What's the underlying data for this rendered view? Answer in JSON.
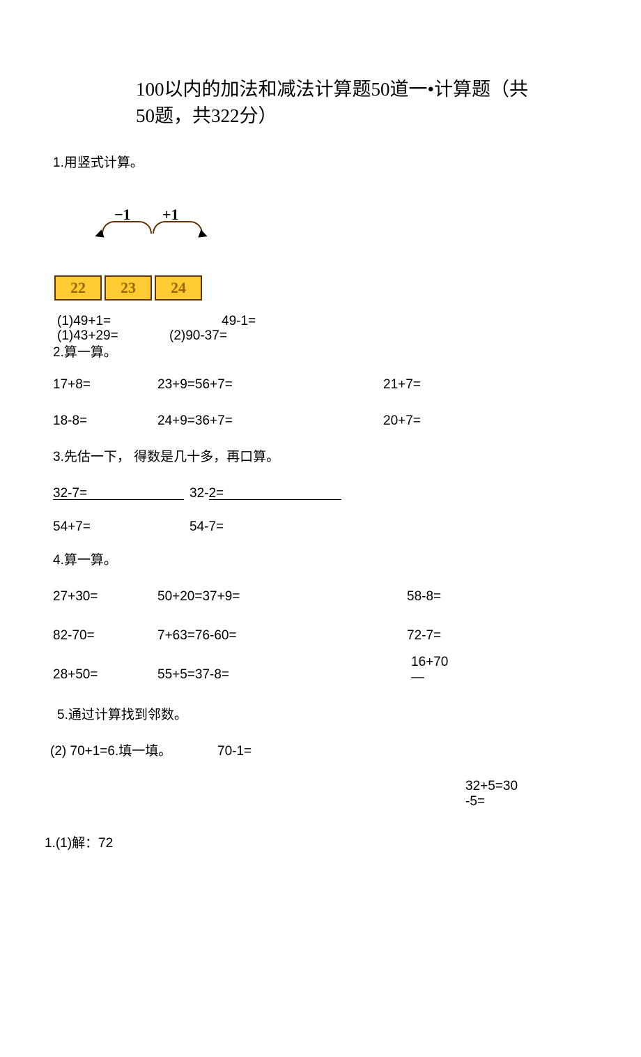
{
  "title": "100以内的加法和减法计算题50道一•计算题（共50题，共322分）",
  "q1": "1.用竖式计算。",
  "diagram": {
    "minus": "−1",
    "plus": "+1",
    "boxes": [
      "22",
      "23",
      "24"
    ],
    "box_bg": "#ffcc33",
    "box_border": "#663300",
    "box_text": "#996600"
  },
  "row1_1": "(1)49+1=",
  "row1_2": "49-1=",
  "row1b_1": "(1)43+29=",
  "row1b_2": "(2)90-37=",
  "q2": "2.算一算。",
  "r2a_1": "17+8=",
  "r2a_2": "23+9=56+7=",
  "r2a_4": "21+7=",
  "r2b_1": "18-8=",
  "r2b_2": "24+9=36+7=",
  "r2b_4": "20+7=",
  "q3": "3.先估一下， 得数是几十多，再口算。",
  "r3a_1": "32-7=",
  "r3a_2": "32-2=",
  "r3b_1": "54+7=",
  "r3b_2": "54-7=",
  "q4": "4.算一算。",
  "r4a_1": "27+30=",
  "r4a_2": "50+20=37+9=",
  "r4a_4": "58-8=",
  "r4b_1": "82-70=",
  "r4b_2": "7+63=76-60=",
  "r4b_4": "72-7=",
  "r4c_1": "28+50=",
  "r4c_2": "55+5=37-8=",
  "r4c_4": "16+70",
  "r4c_4b": "—",
  "q5": "5.通过计算找到邻数。",
  "r5a": "(2)   70+1=6.填一填。",
  "r5a_2": "70-1=",
  "r6a": "32+5=30",
  "r6b": "-5=",
  "ans": "1.(1)解：72"
}
